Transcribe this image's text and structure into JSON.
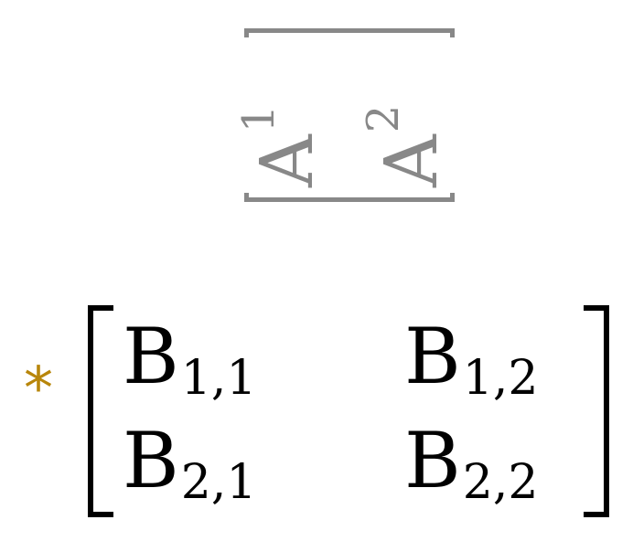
{
  "vector_a": {
    "entries": [
      {
        "base": "A",
        "sup": "1"
      },
      {
        "base": "A",
        "sup": "2"
      }
    ],
    "color": "#888888"
  },
  "operator": {
    "symbol": "*",
    "color": "#b8860b"
  },
  "matrix_b": {
    "cells": [
      [
        {
          "base": "B",
          "sub": "1,1"
        },
        {
          "base": "B",
          "sub": "1,2"
        }
      ],
      [
        {
          "base": "B",
          "sub": "2,1"
        },
        {
          "base": "B",
          "sub": "2,2"
        }
      ]
    ],
    "color": "#000000"
  }
}
